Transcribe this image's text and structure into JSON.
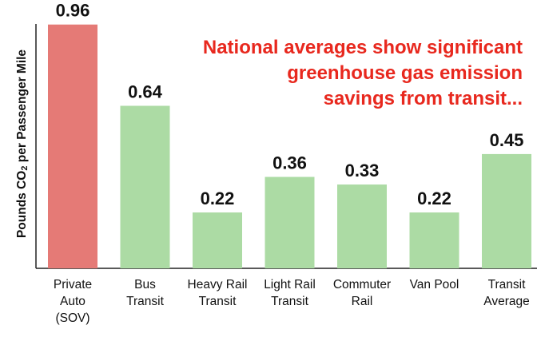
{
  "chart_data": {
    "type": "bar",
    "title": "",
    "ylabel": "Pounds CO2 per Passenger Mile",
    "xlabel": "",
    "ylim": [
      0,
      1.0
    ],
    "categories": [
      [
        "Private",
        "Auto",
        "(SOV)"
      ],
      [
        "Bus",
        "Transit"
      ],
      [
        "Heavy Rail",
        "Transit"
      ],
      [
        "Light Rail",
        "Transit"
      ],
      [
        "Commuter",
        "Rail"
      ],
      [
        "Van Pool"
      ],
      [
        "Transit",
        "Average"
      ]
    ],
    "values": [
      0.96,
      0.64,
      0.22,
      0.36,
      0.33,
      0.22,
      0.45
    ],
    "value_labels": [
      "0.96",
      "0.64",
      "0.22",
      "0.36",
      "0.33",
      "0.22",
      "0.45"
    ],
    "bar_colors": [
      "#e57a76",
      "#acdba4",
      "#acdba4",
      "#acdba4",
      "#acdba4",
      "#acdba4",
      "#acdba4"
    ],
    "annotation": {
      "lines": [
        "National averages show significant",
        "greenhouse gas emission",
        "savings from transit..."
      ],
      "color": "#e8281e"
    }
  }
}
